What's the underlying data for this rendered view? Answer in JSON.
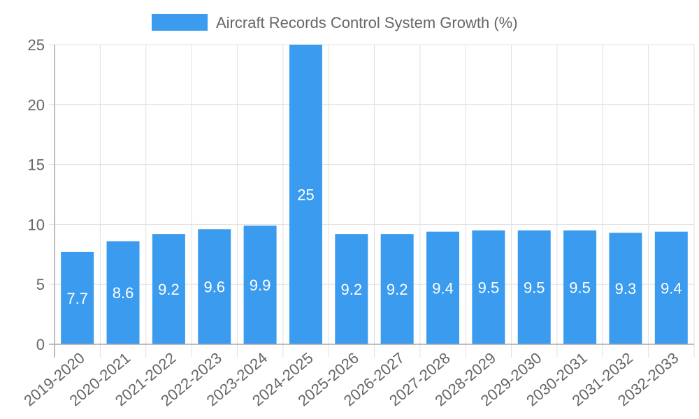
{
  "chart_data": {
    "type": "bar",
    "title": "",
    "legend": {
      "label": "Aircraft Records Control System Growth (%)",
      "placement": "top-center"
    },
    "categories": [
      "2019-2020",
      "2020-2021",
      "2021-2022",
      "2022-2023",
      "2023-2024",
      "2024-2025",
      "2025-2026",
      "2026-2027",
      "2027-2028",
      "2028-2029",
      "2029-2030",
      "2030-2031",
      "2031-2032",
      "2032-2033"
    ],
    "series": [
      {
        "name": "Aircraft Records Control System Growth (%)",
        "values": [
          7.7,
          8.6,
          9.2,
          9.6,
          9.9,
          25,
          9.2,
          9.2,
          9.4,
          9.5,
          9.5,
          9.5,
          9.3,
          9.4
        ]
      }
    ],
    "data_labels": [
      "7.7",
      "8.6",
      "9.2",
      "9.6",
      "9.9",
      "25",
      "9.2",
      "9.2",
      "9.4",
      "9.5",
      "9.5",
      "9.5",
      "9.3",
      "9.4"
    ],
    "y_ticks": [
      "0",
      "5",
      "10",
      "15",
      "20",
      "25"
    ],
    "ylim": [
      0,
      25
    ],
    "xlabel": "",
    "ylabel": "",
    "grid": true,
    "colors": {
      "bar": "#3a9bef",
      "grid": "#e0e0e0",
      "axis": "#a8a8a8",
      "text": "#666666",
      "label": "#ffffff"
    }
  }
}
